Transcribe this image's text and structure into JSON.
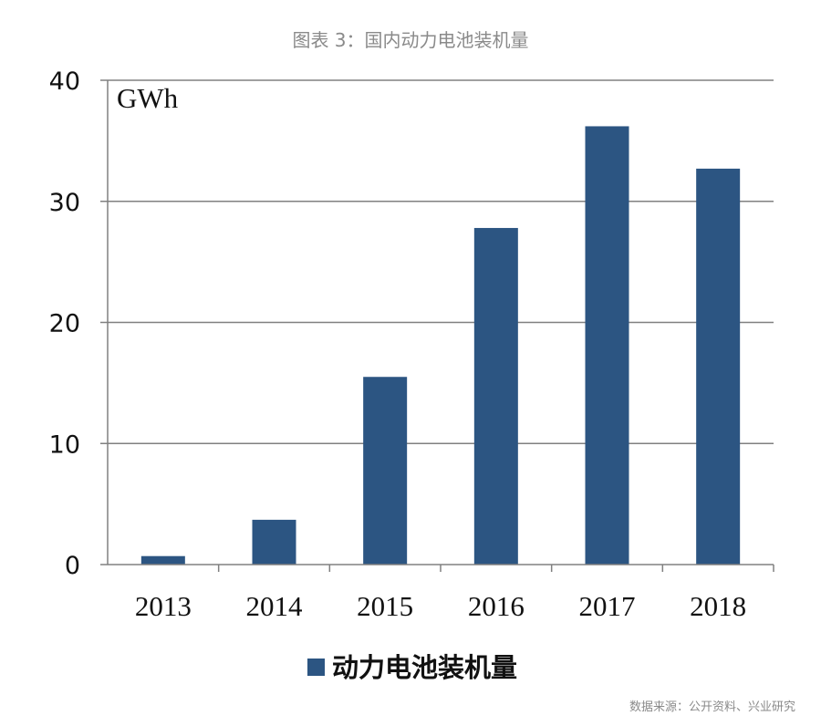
{
  "title": "图表 3：国内动力电池装机量",
  "source": "数据来源：公开资料、兴业研究",
  "chart_data": {
    "type": "bar",
    "title": "图表 3：国内动力电池装机量",
    "unit_label": "GWh",
    "categories": [
      "2013",
      "2014",
      "2015",
      "2016",
      "2017",
      "2018"
    ],
    "series": [
      {
        "name": "动力电池装机量",
        "values": [
          0.7,
          3.7,
          15.5,
          27.8,
          36.2,
          32.7
        ]
      }
    ],
    "ylim": [
      0,
      40
    ],
    "yticks": [
      0,
      10,
      20,
      30,
      40
    ],
    "grid": true,
    "legend": "bottom",
    "bar_color": "#2c5582"
  }
}
